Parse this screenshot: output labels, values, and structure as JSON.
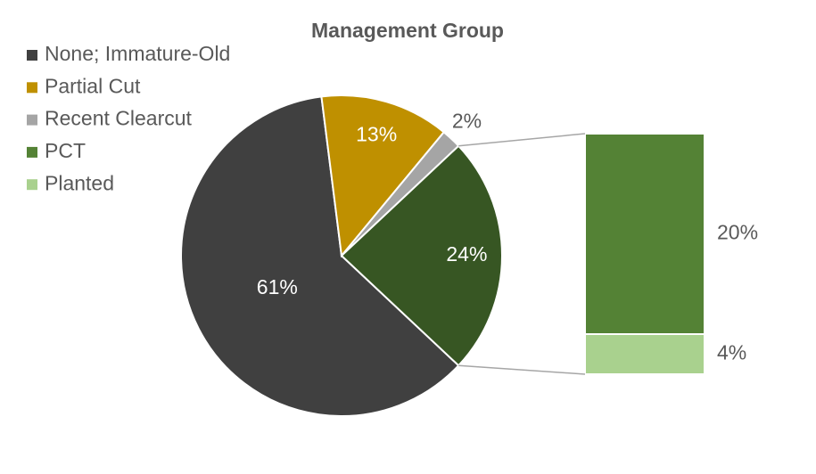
{
  "chart_data": {
    "type": "pie-of-bar",
    "title": "Management Group",
    "pie": {
      "categories": [
        "None; Immature-Old",
        "Partial Cut",
        "Recent Clearcut",
        null
      ],
      "values": [
        61,
        13,
        2,
        24
      ],
      "value_labels": [
        "61%",
        "13%",
        "2%",
        "24%"
      ],
      "colors": [
        "#404040",
        "#bf9000",
        "#a5a5a5",
        "#375623"
      ]
    },
    "bar": {
      "categories": [
        "PCT",
        "Planted"
      ],
      "values": [
        20,
        4
      ],
      "value_labels": [
        "20%",
        "4%"
      ],
      "colors": [
        "#548235",
        "#a9d18e"
      ]
    }
  }
}
